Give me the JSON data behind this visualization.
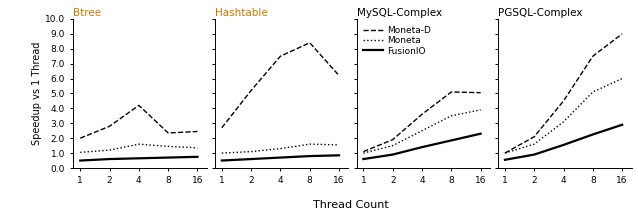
{
  "x": [
    1,
    2,
    4,
    8,
    16
  ],
  "subplots": [
    {
      "title": "Btree",
      "title_color": "#cc7700",
      "moneta_d": [
        2.0,
        2.8,
        4.2,
        2.35,
        2.45
      ],
      "moneta": [
        1.05,
        1.2,
        1.6,
        1.45,
        1.35
      ],
      "fusionio": [
        0.5,
        0.6,
        0.65,
        0.7,
        0.75
      ]
    },
    {
      "title": "Hashtable",
      "title_color": "#cc7700",
      "moneta_d": [
        2.7,
        5.2,
        7.5,
        8.4,
        6.2
      ],
      "moneta": [
        1.0,
        1.1,
        1.3,
        1.6,
        1.55
      ],
      "fusionio": [
        0.5,
        0.6,
        0.7,
        0.8,
        0.85
      ]
    },
    {
      "title": "MySQL-Complex",
      "title_color": "#000000",
      "moneta_d": [
        1.1,
        1.9,
        3.6,
        5.1,
        5.05
      ],
      "moneta": [
        1.0,
        1.5,
        2.5,
        3.5,
        3.9
      ],
      "fusionio": [
        0.6,
        0.9,
        1.4,
        1.85,
        2.3
      ]
    },
    {
      "title": "PGSQL-Complex",
      "title_color": "#000000",
      "moneta_d": [
        1.0,
        2.1,
        4.5,
        7.5,
        9.0
      ],
      "moneta": [
        1.0,
        1.6,
        3.1,
        5.1,
        6.0
      ],
      "fusionio": [
        0.55,
        0.9,
        1.55,
        2.25,
        2.9
      ]
    }
  ],
  "xlabel": "Thread Count",
  "ylabel": "Speedup vs 1 Thread",
  "ylim": [
    0.0,
    10.0
  ],
  "yticks": [
    0.0,
    1.0,
    2.0,
    3.0,
    4.0,
    5.0,
    6.0,
    7.0,
    8.0,
    9.0,
    10.0
  ],
  "ytick_labels": [
    "0.0",
    "1.0",
    "2.0",
    "3.0",
    "4.0",
    "5.0",
    "6.0",
    "7.0",
    "8.0",
    "9.0",
    "10.0"
  ],
  "xticks": [
    1,
    2,
    4,
    8,
    16
  ],
  "legend_labels": [
    "Moneta-D",
    "Moneta",
    "FusionIO"
  ],
  "moneta_d_style": {
    "linestyle": "--",
    "color": "black",
    "linewidth": 1.0
  },
  "moneta_style": {
    "linestyle": ":",
    "color": "black",
    "linewidth": 1.0
  },
  "fusionio_style": {
    "linestyle": "-",
    "color": "black",
    "linewidth": 1.6
  }
}
